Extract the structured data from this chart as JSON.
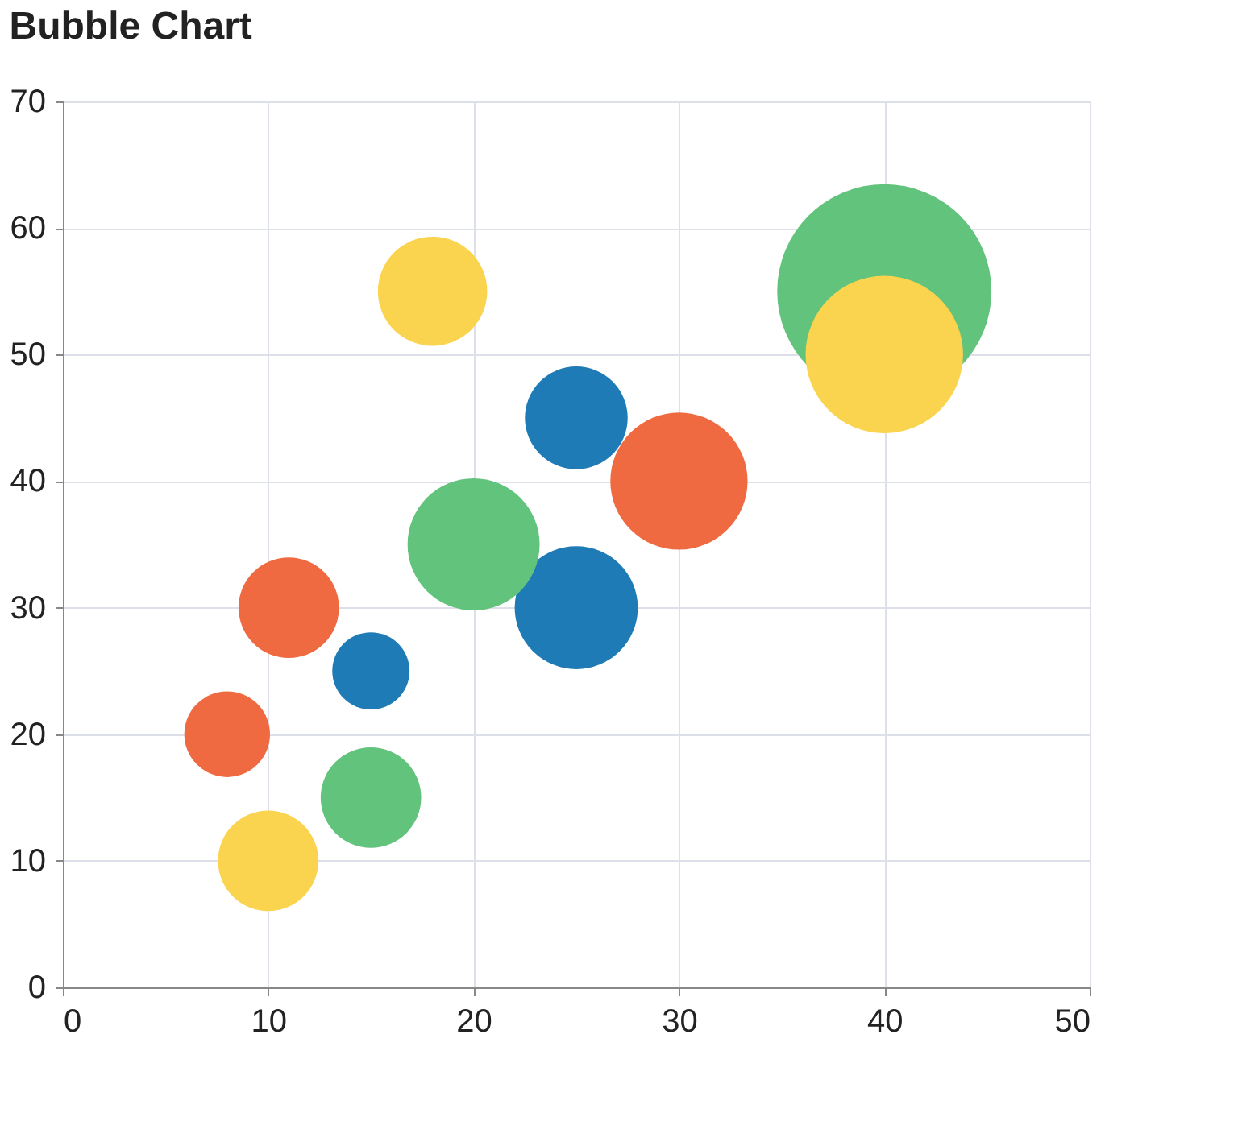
{
  "chart_data": {
    "type": "bubble",
    "title": "Bubble Chart",
    "xlim": [
      0,
      50
    ],
    "xticks": [
      0,
      10,
      20,
      30,
      40,
      50
    ],
    "ylim": [
      0,
      70
    ],
    "yticks": [
      0,
      10,
      20,
      30,
      40,
      50,
      60,
      70
    ],
    "grid": true,
    "legend": false,
    "series": [
      {
        "color": "#ef6a40",
        "x": [
          8,
          11,
          30
        ],
        "values": [
          20,
          30,
          40
        ],
        "sizes": [
          0.16,
          0.22,
          0.41
        ]
      },
      {
        "color": "#1f7bb6",
        "x": [
          15,
          25,
          25
        ],
        "values": [
          25,
          45,
          30
        ],
        "sizes": [
          0.13,
          0.23,
          0.33
        ]
      },
      {
        "color": "#62c37d",
        "x": [
          15,
          20,
          40
        ],
        "values": [
          15,
          35,
          55
        ],
        "sizes": [
          0.22,
          0.38,
          1
        ]
      },
      {
        "color": "#fad44f",
        "x": [
          10,
          18,
          40
        ],
        "values": [
          10,
          55,
          50
        ],
        "sizes": [
          0.22,
          0.26,
          0.54
        ]
      }
    ]
  }
}
